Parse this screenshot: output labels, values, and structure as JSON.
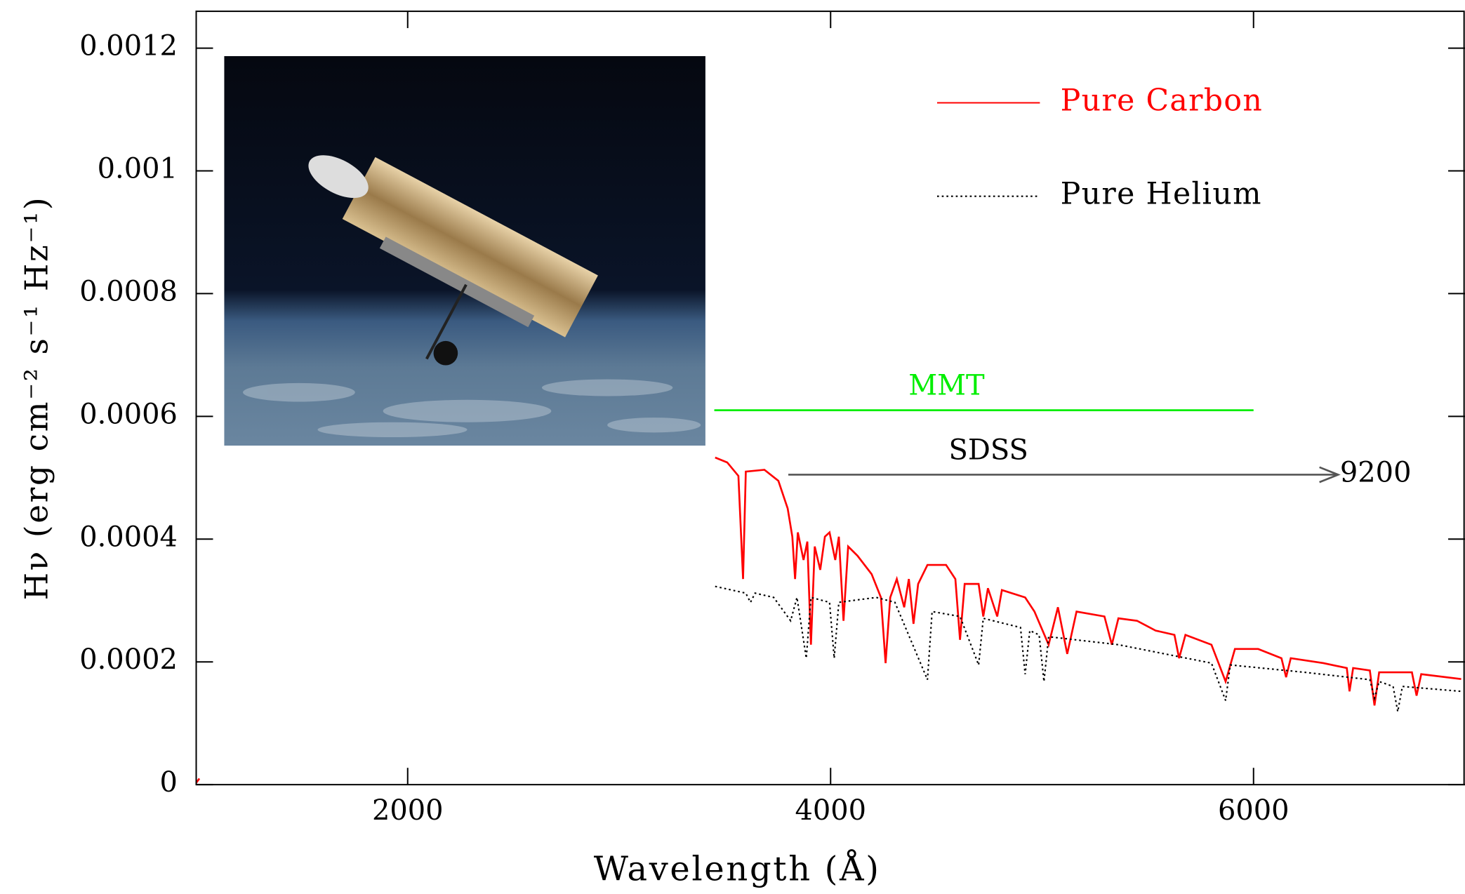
{
  "chart_data": {
    "type": "line",
    "x_label": "Wavelength (Å)",
    "y_label": "Hν (erg cm⁻² s⁻¹ Hz⁻¹)",
    "xlim": [
      1000,
      7000
    ],
    "xticks": [
      2000,
      4000,
      6000
    ],
    "ylim": [
      0,
      0.00126
    ],
    "yticks": [
      0,
      0.0002,
      0.0004,
      0.0006,
      0.0008,
      0.001,
      0.0012
    ],
    "legend": "top-right",
    "series": [
      {
        "name": "Pure Carbon",
        "color": "#ff0000",
        "style": "solid",
        "x": [
          1000,
          1015,
          1030,
          3454,
          3511,
          3564,
          3586,
          3599,
          3687,
          3753,
          3797,
          3819,
          3832,
          3845,
          3872,
          3890,
          3907,
          3925,
          3951,
          3973,
          3995,
          4022,
          4039,
          4061,
          4083,
          4127,
          4194,
          4238,
          4260,
          4282,
          4313,
          4348,
          4370,
          4392,
          4414,
          4458,
          4546,
          4590,
          4612,
          4634,
          4700,
          4722,
          4744,
          4788,
          4810,
          4920,
          4964,
          5031,
          5075,
          5119,
          5163,
          5295,
          5330,
          5361,
          5449,
          5537,
          5626,
          5648,
          5678,
          5801,
          5868,
          5912,
          6022,
          6132,
          6154,
          6176,
          6330,
          6441,
          6454,
          6471,
          6550,
          6572,
          6594,
          6749,
          6771,
          6793,
          6982
        ],
        "values": [
          3e-06,
          1e-05,
          null,
          0.000533,
          0.000525,
          0.000503,
          0.000335,
          0.00051,
          0.000513,
          0.000495,
          0.00045,
          0.000404,
          0.000335,
          0.000411,
          0.000366,
          0.000396,
          0.000228,
          0.000388,
          0.00035,
          0.000404,
          0.000411,
          0.000366,
          0.000404,
          0.000267,
          0.000388,
          0.000373,
          0.000343,
          0.000305,
          0.000198,
          0.000305,
          0.000335,
          0.000289,
          0.000335,
          0.000262,
          0.000327,
          0.000358,
          0.000358,
          0.000335,
          0.000236,
          0.000327,
          0.000327,
          0.000274,
          0.00032,
          0.000274,
          0.000317,
          0.000305,
          0.000282,
          0.000228,
          0.000289,
          0.000213,
          0.000282,
          0.000274,
          0.000228,
          0.000271,
          0.000267,
          0.000251,
          0.000244,
          0.000206,
          0.000244,
          0.000228,
          0.000168,
          0.000221,
          0.000221,
          0.000206,
          0.000175,
          0.000206,
          0.000198,
          0.00019,
          0.000152,
          0.00019,
          0.000186,
          0.000129,
          0.000183,
          0.000183,
          0.000145,
          0.00018,
          0.000172
        ]
      },
      {
        "name": "Pure Helium",
        "color": "#000000",
        "style": "dotted",
        "x": [
          3454,
          3599,
          3621,
          3643,
          3731,
          3811,
          3841,
          3885,
          3907,
          3995,
          4017,
          4039,
          4216,
          4304,
          4458,
          4480,
          4612,
          4700,
          4722,
          4898,
          4920,
          4942,
          4986,
          5009,
          5031,
          5361,
          5801,
          5868,
          5890,
          6242,
          6550,
          6572,
          6594,
          6660,
          6682,
          6704,
          6982
        ],
        "values": [
          0.000323,
          0.000312,
          0.000297,
          0.000312,
          0.000305,
          0.000267,
          0.000305,
          0.000206,
          0.000305,
          0.000297,
          0.000206,
          0.000297,
          0.000305,
          0.000297,
          0.000171,
          0.000282,
          0.000274,
          0.000195,
          0.000271,
          0.000256,
          0.00018,
          0.000251,
          0.000244,
          0.000168,
          0.000241,
          0.000228,
          0.000198,
          0.000137,
          0.000195,
          0.000183,
          0.000171,
          0.000141,
          0.000168,
          0.00016,
          0.000119,
          0.00016,
          0.000152
        ]
      }
    ],
    "annotations": [
      {
        "text": "MMT",
        "x_start": 3450,
        "x_end": 6000,
        "y": 0.00061,
        "color": "#00ee00"
      },
      {
        "text": "SDSS",
        "x_start": 3800,
        "x_end": 6400,
        "y": 0.000505,
        "end_label": "9200",
        "color": "#555555"
      }
    ]
  }
}
